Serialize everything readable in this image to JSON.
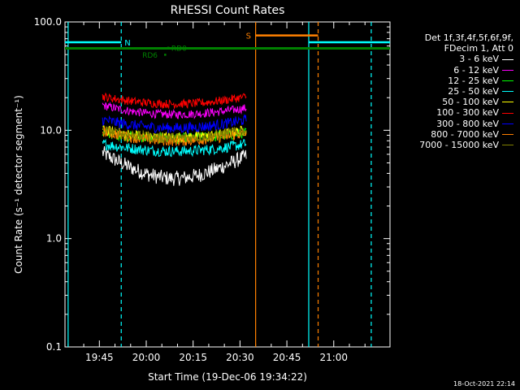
{
  "chart_data": {
    "type": "line",
    "title": "RHESSI Count Rates",
    "xlabel": "Start Time (19-Dec-06 19:34:22)",
    "ylabel": "Count Rate (s⁻¹ detector segment⁻¹)",
    "yscale": "log",
    "ylim": [
      0.1,
      100.0
    ],
    "xlim": [
      "19:34",
      "21:18"
    ],
    "x_ticks": [
      "19:45",
      "20:00",
      "20:15",
      "20:30",
      "20:45",
      "21:00"
    ],
    "y_ticks": [
      "0.1",
      "1.0",
      "10.0",
      "100.0"
    ],
    "grid": false,
    "legend": {
      "position": "top-right",
      "header": [
        "Det 1f,3f,4f,5f,6f,9f,",
        "FDecim 1, Att 0"
      ]
    },
    "series": [
      {
        "name": "3 - 6 keV",
        "color": "#ffffff",
        "start": 6.2,
        "end": 5.8,
        "min": 3.6,
        "noise": 0.07
      },
      {
        "name": "6 - 12 keV",
        "color": "#ff00ff",
        "start": 17.0,
        "end": 16.0,
        "min": 14.0,
        "noise": 0.04
      },
      {
        "name": "12 - 25 keV",
        "color": "#00ff00",
        "start": 9.5,
        "end": 9.5,
        "min": 8.4,
        "noise": 0.05
      },
      {
        "name": "25 - 50 keV",
        "color": "#00ffff",
        "start": 7.5,
        "end": 7.5,
        "min": 6.4,
        "noise": 0.05
      },
      {
        "name": "50 - 100 keV",
        "color": "#ffff00",
        "start": 10.0,
        "end": 10.0,
        "min": 8.6,
        "noise": 0.05
      },
      {
        "name": "100 - 300 keV",
        "color": "#ff0000",
        "start": 20.5,
        "end": 20.5,
        "min": 17.5,
        "noise": 0.04
      },
      {
        "name": "300 - 800 keV",
        "color": "#0000ff",
        "start": 12.5,
        "end": 12.5,
        "min": 10.5,
        "noise": 0.05
      },
      {
        "name": "800 - 7000 keV",
        "color": "#ff8000",
        "start": 9.8,
        "end": 9.5,
        "min": 8.0,
        "noise": 0.05
      },
      {
        "name": "7000 - 15000 keV",
        "color": "#808000",
        "start": 10.0,
        "end": 10.0,
        "min": 8.5,
        "noise": 0.05
      }
    ],
    "data_interval": [
      "19:46",
      "20:32"
    ],
    "annotations": [
      {
        "label": "N",
        "color": "#00ffff",
        "from": "19:34",
        "to": "19:52",
        "y": 65.0
      },
      {
        "label": "",
        "color": "#00ffff",
        "from": "20:52",
        "to": "21:18",
        "y": 65.0
      },
      {
        "label": "S",
        "color": "#ff8000",
        "from": "20:35",
        "to": "20:55",
        "y": 75.0
      },
      {
        "label": "RD0",
        "color": "#008000",
        "at": "20:07",
        "y": 58.0
      },
      {
        "label": "RD6",
        "color": "#008000",
        "at": "20:06",
        "y": 50.0
      }
    ],
    "green_level": 57.0,
    "vertical_markers": [
      {
        "time": "19:35",
        "color": "#00ffff",
        "style": "solid"
      },
      {
        "time": "19:52",
        "color": "#00ffff",
        "style": "dashed"
      },
      {
        "time": "20:35",
        "color": "#ff8000",
        "style": "solid"
      },
      {
        "time": "20:52",
        "color": "#00ffff",
        "style": "solid"
      },
      {
        "time": "20:55",
        "color": "#ff8000",
        "style": "dashed"
      },
      {
        "time": "21:12",
        "color": "#00ffff",
        "style": "dashed"
      }
    ],
    "timestamp": "18-Oct-2021 22:14"
  }
}
